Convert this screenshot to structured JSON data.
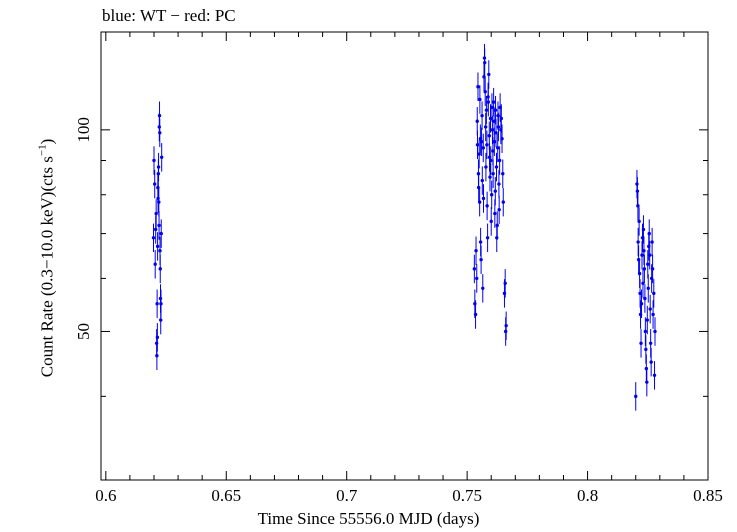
{
  "chart_data": {
    "type": "scatter",
    "title": "blue: WT − red: PC",
    "xlabel": "Time Since 55556.0 MJD (days)",
    "ylabel_main": "Count Rate (0.3−10.0 keV)(cts s",
    "ylabel_sup": "−1",
    "ylabel_end": ")",
    "xlim": [
      0.598,
      0.85
    ],
    "ylim": [
      30,
      140
    ],
    "yscale": "log",
    "xticks": [
      0.6,
      0.65,
      0.7,
      0.75,
      0.8,
      0.85
    ],
    "xtick_labels": [
      "0.6",
      "0.65",
      "0.7",
      "0.75",
      "0.8",
      "0.85"
    ],
    "yticks": [
      50,
      100
    ],
    "ytick_labels": [
      "50",
      "100"
    ],
    "marker_color": "#0000ee",
    "series": [
      {
        "name": "WT",
        "color": "#0000ee",
        "points": [
          [
            0.6198,
            69
          ],
          [
            0.62,
            90
          ],
          [
            0.6203,
            83
          ],
          [
            0.6205,
            63
          ],
          [
            0.6207,
            71
          ],
          [
            0.6209,
            75
          ],
          [
            0.6211,
            48
          ],
          [
            0.6212,
            46
          ],
          [
            0.6213,
            55
          ],
          [
            0.6214,
            49
          ],
          [
            0.6215,
            67
          ],
          [
            0.6216,
            82
          ],
          [
            0.6217,
            79
          ],
          [
            0.6218,
            86
          ],
          [
            0.6219,
            88
          ],
          [
            0.622,
            78
          ],
          [
            0.6221,
            72
          ],
          [
            0.6222,
            101
          ],
          [
            0.6223,
            105
          ],
          [
            0.6224,
            99
          ],
          [
            0.6225,
            66
          ],
          [
            0.6226,
            62
          ],
          [
            0.6227,
            56
          ],
          [
            0.6228,
            52
          ],
          [
            0.6229,
            55
          ],
          [
            0.623,
            70
          ],
          [
            0.6232,
            91
          ]
        ]
      },
      {
        "name": "WT",
        "color": "#0000ee",
        "points": [
          [
            0.753,
            62
          ],
          [
            0.7532,
            55
          ],
          [
            0.7535,
            53
          ],
          [
            0.7537,
            66
          ],
          [
            0.754,
            60
          ],
          [
            0.7542,
            103
          ],
          [
            0.7543,
            95
          ],
          [
            0.7545,
            116
          ],
          [
            0.7547,
            86
          ],
          [
            0.7548,
            82
          ],
          [
            0.755,
            92
          ],
          [
            0.7552,
            78
          ],
          [
            0.7553,
            111
          ],
          [
            0.7555,
            97
          ],
          [
            0.7556,
            68
          ],
          [
            0.7558,
            64
          ],
          [
            0.756,
            96
          ],
          [
            0.7562,
            105
          ],
          [
            0.7563,
            84
          ],
          [
            0.7565,
            58
          ],
          [
            0.7567,
            94
          ],
          [
            0.7568,
            79
          ],
          [
            0.757,
            120
          ],
          [
            0.7572,
            128
          ],
          [
            0.7573,
            126
          ],
          [
            0.7575,
            114
          ],
          [
            0.7577,
            101
          ],
          [
            0.7578,
            88
          ],
          [
            0.758,
            107
          ],
          [
            0.7582,
            95
          ],
          [
            0.7583,
            77
          ],
          [
            0.7585,
            69
          ],
          [
            0.7587,
            112
          ],
          [
            0.7588,
            110
          ],
          [
            0.759,
            121
          ],
          [
            0.7592,
            98
          ],
          [
            0.7593,
            91
          ],
          [
            0.7595,
            85
          ],
          [
            0.7597,
            104
          ],
          [
            0.7598,
            90
          ],
          [
            0.76,
            73
          ],
          [
            0.7602,
            80
          ],
          [
            0.7603,
            108
          ],
          [
            0.7605,
            100
          ],
          [
            0.7607,
            93
          ],
          [
            0.7608,
            86
          ],
          [
            0.761,
            110
          ],
          [
            0.7612,
            103
          ],
          [
            0.7613,
            96
          ],
          [
            0.7615,
            75
          ],
          [
            0.7617,
            81
          ],
          [
            0.7618,
            107
          ],
          [
            0.762,
            99
          ],
          [
            0.7622,
            88
          ],
          [
            0.7623,
            69
          ],
          [
            0.7625,
            72
          ],
          [
            0.7627,
            94
          ],
          [
            0.7628,
            105
          ],
          [
            0.763,
            101
          ],
          [
            0.7632,
            83
          ],
          [
            0.7633,
            76
          ],
          [
            0.7635,
            90
          ],
          [
            0.7637,
            108
          ],
          [
            0.764,
            100
          ],
          [
            0.7642,
            104
          ],
          [
            0.7645,
            97
          ],
          [
            0.7648,
            86
          ],
          [
            0.765,
            78
          ],
          [
            0.7655,
            57
          ],
          [
            0.7658,
            59
          ],
          [
            0.766,
            50
          ],
          [
            0.7662,
            51
          ]
        ]
      },
      {
        "name": "WT",
        "color": "#0000ee",
        "points": [
          [
            0.82,
            40
          ],
          [
            0.8205,
            83
          ],
          [
            0.8207,
            81
          ],
          [
            0.8209,
            77
          ],
          [
            0.821,
            68
          ],
          [
            0.8212,
            64
          ],
          [
            0.8214,
            73
          ],
          [
            0.8216,
            61
          ],
          [
            0.8218,
            57
          ],
          [
            0.822,
            53
          ],
          [
            0.8222,
            48
          ],
          [
            0.8224,
            55
          ],
          [
            0.8226,
            65
          ],
          [
            0.8228,
            69
          ],
          [
            0.823,
            59
          ],
          [
            0.8232,
            71
          ],
          [
            0.8234,
            66
          ],
          [
            0.8236,
            62
          ],
          [
            0.8238,
            56
          ],
          [
            0.824,
            50
          ],
          [
            0.8242,
            47
          ],
          [
            0.8244,
            44
          ],
          [
            0.8246,
            42
          ],
          [
            0.8248,
            52
          ],
          [
            0.825,
            63
          ],
          [
            0.8252,
            58
          ],
          [
            0.8254,
            67
          ],
          [
            0.8256,
            70
          ],
          [
            0.8258,
            65
          ],
          [
            0.826,
            54
          ],
          [
            0.8262,
            48
          ],
          [
            0.8264,
            45
          ],
          [
            0.8266,
            60
          ],
          [
            0.8268,
            68
          ],
          [
            0.827,
            62
          ],
          [
            0.8272,
            53
          ],
          [
            0.8275,
            57
          ],
          [
            0.8278,
            43
          ],
          [
            0.828,
            50
          ]
        ]
      }
    ]
  }
}
